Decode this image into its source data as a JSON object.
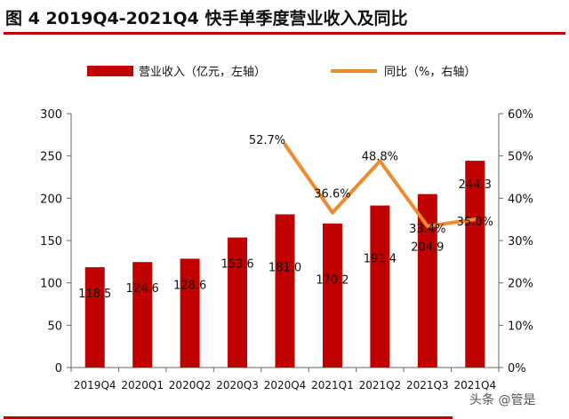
{
  "title": "图 4 2019Q4-2021Q4 快手单季度营业收入及同比",
  "watermark": "头条 @管是",
  "chart_data": {
    "type": "bar+line",
    "categories": [
      "2019Q4",
      "2020Q1",
      "2020Q2",
      "2020Q3",
      "2020Q4",
      "2021Q1",
      "2021Q2",
      "2021Q3",
      "2021Q4"
    ],
    "series": [
      {
        "name": "营业收入（亿元，左轴）",
        "type": "bar",
        "axis": "left",
        "color": "#c00000",
        "values": [
          118.5,
          124.6,
          128.6,
          153.6,
          181.0,
          170.2,
          191.4,
          204.9,
          244.3
        ],
        "labels": [
          "118.5",
          "124.6",
          "128.6",
          "153.6",
          "181.0",
          "170.2",
          "191.4",
          "204.9",
          "244.3"
        ]
      },
      {
        "name": "同比（%，右轴）",
        "type": "line",
        "axis": "right",
        "color": "#ed8b2e",
        "values": [
          null,
          null,
          null,
          null,
          52.7,
          36.6,
          48.8,
          33.4,
          35.0
        ],
        "labels": [
          "",
          "",
          "",
          "",
          "52.7%",
          "36.6%",
          "48.8%",
          "33.4%",
          "35.0%"
        ]
      }
    ],
    "yleft": {
      "lim": [
        0,
        300
      ],
      "ticks": [
        "0",
        "50",
        "100",
        "150",
        "200",
        "250",
        "300"
      ]
    },
    "yright": {
      "lim": [
        0,
        60
      ],
      "ticks": [
        "0%",
        "10%",
        "20%",
        "30%",
        "40%",
        "50%",
        "60%"
      ]
    },
    "legend": "top"
  }
}
